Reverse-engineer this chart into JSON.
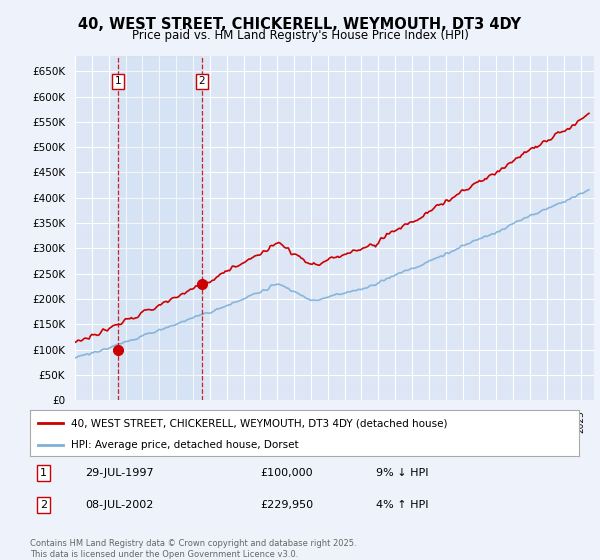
{
  "title": "40, WEST STREET, CHICKERELL, WEYMOUTH, DT3 4DY",
  "subtitle": "Price paid vs. HM Land Registry's House Price Index (HPI)",
  "background_color": "#eef2fa",
  "plot_bg_color": "#dce6f5",
  "grid_color": "#ffffff",
  "red_line_color": "#cc0000",
  "blue_line_color": "#7fb0d8",
  "sale1_date": 1997.57,
  "sale1_price": 100000,
  "sale2_date": 2002.52,
  "sale2_price": 229950,
  "ylim_min": 0,
  "ylim_max": 680000,
  "xlim_min": 1995.0,
  "xlim_max": 2025.8,
  "yticks": [
    0,
    50000,
    100000,
    150000,
    200000,
    250000,
    300000,
    350000,
    400000,
    450000,
    500000,
    550000,
    600000,
    650000
  ],
  "footnote": "Contains HM Land Registry data © Crown copyright and database right 2025.\nThis data is licensed under the Open Government Licence v3.0.",
  "legend1": "40, WEST STREET, CHICKERELL, WEYMOUTH, DT3 4DY (detached house)",
  "legend2": "HPI: Average price, detached house, Dorset"
}
